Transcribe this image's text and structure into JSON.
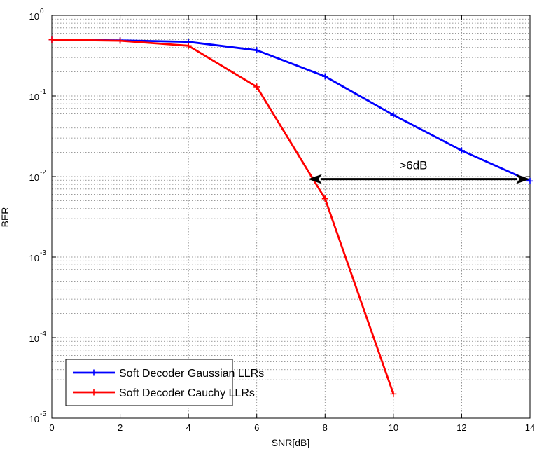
{
  "chart_data": {
    "type": "line",
    "title": "",
    "xlabel": "SNR[dB]",
    "ylabel": "BER",
    "xlim": [
      0,
      14
    ],
    "ylim": [
      1e-05,
      1
    ],
    "yscale": "log",
    "grid": true,
    "x_ticks": [
      0,
      2,
      4,
      6,
      8,
      10,
      12,
      14
    ],
    "y_ticks": [
      {
        "value": 1,
        "base": "10",
        "exp": "0"
      },
      {
        "value": 0.1,
        "base": "10",
        "exp": "-1"
      },
      {
        "value": 0.01,
        "base": "10",
        "exp": "-2"
      },
      {
        "value": 0.001,
        "base": "10",
        "exp": "-3"
      },
      {
        "value": 0.0001,
        "base": "10",
        "exp": "-4"
      },
      {
        "value": 1e-05,
        "base": "10",
        "exp": "-5"
      }
    ],
    "legend_position": "bottom-left",
    "series": [
      {
        "name": "Soft Decoder Gaussian LLRs",
        "color": "#0000ff",
        "marker": "plus",
        "x": [
          0,
          2,
          4,
          6,
          8,
          10,
          12,
          14
        ],
        "y": [
          0.5,
          0.49,
          0.47,
          0.37,
          0.175,
          0.058,
          0.021,
          0.0088
        ]
      },
      {
        "name": "Soft Decoder Cauchy LLRs",
        "color": "#ff0000",
        "marker": "plus",
        "x": [
          0,
          2,
          4,
          6,
          8,
          10
        ],
        "y": [
          0.5,
          0.485,
          0.42,
          0.13,
          0.0053,
          2e-05
        ]
      }
    ],
    "annotation": {
      "text": ">6dB",
      "x_start": 7.5,
      "x_end": 14,
      "y": 0.0093
    }
  }
}
